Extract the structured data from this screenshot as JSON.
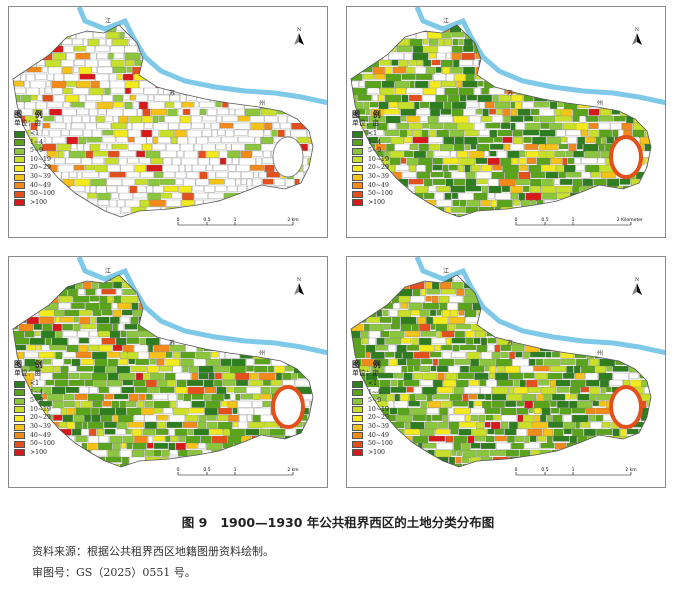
{
  "figure": {
    "caption_no": "图 9",
    "caption_text": "1900—1930 年公共租界西区的土地分类分布图",
    "source_note": "资料来源：根据公共租界西区地籍图册资料绘制。",
    "approval_note": "审图号：GS（2025）0551 号。"
  },
  "legend": {
    "title": "图 例",
    "unit": "单位：亩",
    "classes": [
      {
        "label": "<1",
        "color": "#2e7d1f"
      },
      {
        "label": "1~4",
        "color": "#5aa41c"
      },
      {
        "label": "5~9",
        "color": "#8cc63e"
      },
      {
        "label": "10~19",
        "color": "#c9e02a"
      },
      {
        "label": "20~29",
        "color": "#f2ea1c"
      },
      {
        "label": "30~39",
        "color": "#f5c218"
      },
      {
        "label": "40~49",
        "color": "#f28a1a"
      },
      {
        "label": "50~100",
        "color": "#e4501c"
      },
      {
        "label": ">100",
        "color": "#d7191c"
      }
    ]
  },
  "map_labels": {
    "river_char_1": "江",
    "river_char_2": "苏",
    "river_char_3": "州",
    "north_letter": "N"
  },
  "panels": [
    {
      "scale_ticks": [
        "0",
        "0.5",
        "1",
        "2 km"
      ],
      "density": 0.35,
      "dominant": "white"
    },
    {
      "scale_ticks": [
        "0",
        "0.5",
        "1",
        "2 Kilometers"
      ],
      "density": 0.8,
      "dominant": "green"
    },
    {
      "scale_ticks": [
        "0",
        "0.5",
        "1",
        "2 km"
      ],
      "density": 0.85,
      "dominant": "green"
    },
    {
      "scale_ticks": [
        "0",
        "0.5",
        "1",
        "2 km"
      ],
      "density": 0.9,
      "dominant": "green"
    }
  ]
}
